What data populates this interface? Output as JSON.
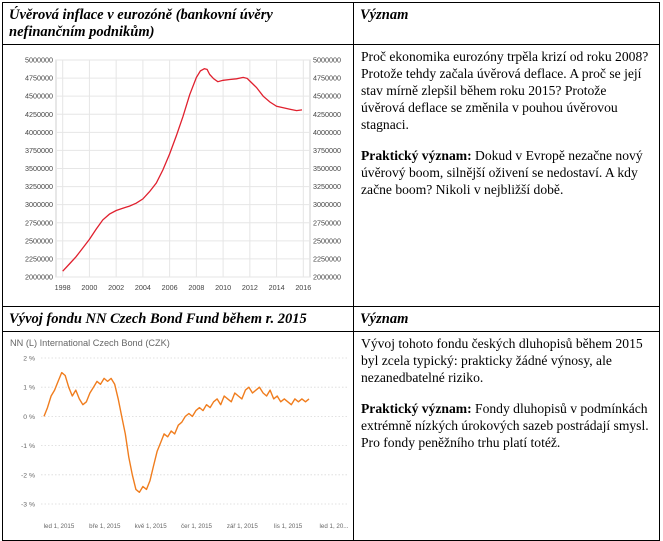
{
  "row1": {
    "left_header": "Úvěrová inflace v eurozóně (bankovní úvěry nefinančním podnikům)",
    "right_header": "Význam",
    "text_1": "Proč ekonomika eurozóny trpěla krizí od roku 2008? Protože tehdy začala úvěrová deflace. A proč se její stav mírně zlepšil během roku 2015? Protože úvěrová deflace se změnila v pouhou úvěrovou stagnaci.",
    "practical_label": "Praktický význam:",
    "practical_text": " Dokud v Evropě nezačne nový úvěrový boom, silnější oživení se nedostaví. A kdy začne boom? Nikoli v nejbližší době."
  },
  "row2": {
    "left_header": "Vývoj fondu NN Czech Bond Fund během r. 2015",
    "right_header": "Význam",
    "text_1": "Vývoj tohoto fondu českých dluhopisů během 2015 byl zcela typický: prakticky žádné výnosy, ale nezanedbatelné riziko.",
    "practical_label": "Praktický význam:",
    "practical_text": " Fondy dluhopisů v podmínkách extrémně nízkých úrokových sazeb postrádají smysl. Pro fondy peněžního trhu platí totéž."
  },
  "chart_data": [
    {
      "type": "line",
      "title": "",
      "color": "#e0202e",
      "x_tick_labels": [
        "1998",
        "2000",
        "2002",
        "2004",
        "2006",
        "2008",
        "2010",
        "2012",
        "2014",
        "2016"
      ],
      "y_tick_labels": [
        "2000000",
        "2250000",
        "2500000",
        "2750000",
        "3000000",
        "3250000",
        "3500000",
        "3750000",
        "4000000",
        "4250000",
        "4500000",
        "4750000",
        "5000000"
      ],
      "xlim": [
        1997.5,
        2016.5
      ],
      "ylim": [
        2000000,
        5000000
      ],
      "grid": true,
      "series": [
        {
          "x": [
            1998.0,
            1998.5,
            1999.0,
            1999.5,
            2000.0,
            2000.5,
            2001.0,
            2001.5,
            2002.0,
            2002.5,
            2003.0,
            2003.5,
            2004.0,
            2004.5,
            2005.0,
            2005.5,
            2006.0,
            2006.5,
            2007.0,
            2007.5,
            2008.0,
            2008.3,
            2008.6,
            2008.8,
            2009.0,
            2009.3,
            2009.6,
            2010.0,
            2010.5,
            2011.0,
            2011.5,
            2011.8,
            2012.0,
            2012.5,
            2013.0,
            2013.5,
            2014.0,
            2014.5,
            2015.0,
            2015.5,
            2015.9
          ],
          "y": [
            2080000,
            2180000,
            2280000,
            2400000,
            2520000,
            2660000,
            2790000,
            2870000,
            2920000,
            2950000,
            2980000,
            3020000,
            3080000,
            3180000,
            3300000,
            3480000,
            3700000,
            3950000,
            4220000,
            4520000,
            4760000,
            4850000,
            4880000,
            4870000,
            4800000,
            4740000,
            4700000,
            4720000,
            4730000,
            4740000,
            4760000,
            4745000,
            4710000,
            4620000,
            4500000,
            4420000,
            4360000,
            4340000,
            4320000,
            4300000,
            4310000
          ]
        }
      ]
    },
    {
      "type": "line",
      "title": "NN (L) International Czech Bond (CZK)",
      "color": "#f07d1e",
      "x_tick_labels": [
        "led 1, 2015",
        "bře 1, 2015",
        "kvě 1, 2015",
        "čer 1, 2015",
        "zář 1, 2015",
        "lis 1, 2015",
        "led 1, 20..."
      ],
      "y_tick_labels": [
        "2 %",
        "1 %",
        "0 %",
        "-1 %",
        "-2 %",
        "-3 %"
      ],
      "ylim": [
        -3,
        2
      ],
      "grid": true,
      "series": [
        {
          "x": [
            0,
            2,
            4,
            6,
            8,
            10,
            12,
            14,
            16,
            18,
            20,
            22,
            24,
            26,
            28,
            30,
            32,
            34,
            36,
            38,
            40,
            42,
            44,
            46,
            48,
            50,
            52,
            54,
            56,
            58,
            60,
            62,
            64,
            66,
            68,
            70,
            72,
            74,
            76,
            78,
            80,
            82,
            84,
            86,
            88,
            90,
            92,
            94,
            96,
            98,
            100,
            102,
            104,
            106,
            108,
            110,
            112,
            114,
            116,
            118,
            120,
            122,
            124,
            126,
            128,
            130,
            132,
            134,
            136,
            138,
            140,
            142,
            144,
            146,
            148,
            150
          ],
          "y": [
            0,
            0.3,
            0.7,
            0.9,
            1.2,
            1.5,
            1.4,
            1.0,
            0.7,
            0.9,
            0.6,
            0.4,
            0.5,
            0.8,
            1.0,
            1.2,
            1.1,
            1.3,
            1.2,
            1.3,
            1.1,
            0.6,
            0.0,
            -0.6,
            -1.4,
            -2.0,
            -2.5,
            -2.6,
            -2.4,
            -2.5,
            -2.2,
            -1.7,
            -1.2,
            -0.9,
            -0.6,
            -0.7,
            -0.5,
            -0.6,
            -0.3,
            -0.2,
            0.0,
            0.1,
            0.0,
            0.2,
            0.3,
            0.2,
            0.4,
            0.3,
            0.5,
            0.6,
            0.4,
            0.7,
            0.6,
            0.5,
            0.8,
            0.7,
            0.6,
            0.9,
            1.0,
            0.8,
            0.9,
            1.0,
            0.8,
            0.7,
            0.9,
            0.6,
            0.7,
            0.5,
            0.6,
            0.5,
            0.4,
            0.6,
            0.5,
            0.6,
            0.5,
            0.6
          ]
        }
      ]
    }
  ]
}
